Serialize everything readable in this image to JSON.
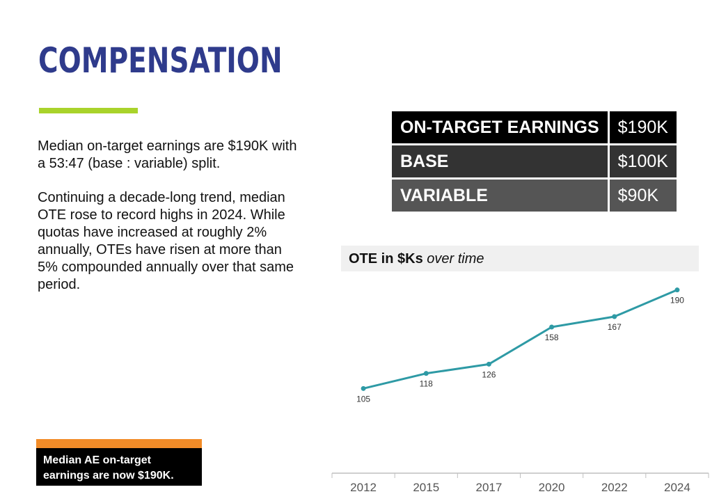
{
  "slide": {
    "title": "COMPENSATION",
    "paragraph1": "Median on-target earnings are $190K with a 53:47 (base : variable) split.",
    "paragraph2": "Continuing a decade-long trend, median OTE rose to record highs in 2024. While quotas have increased at roughly 2% annually, OTEs have risen at more than 5% compounded annually over that same period.",
    "callout": "Median AE on-target earnings are now $190K."
  },
  "table": {
    "rows": [
      {
        "label": "ON-TARGET EARNINGS",
        "value": "$190K"
      },
      {
        "label": "BASE",
        "value": "$100K"
      },
      {
        "label": "VARIABLE",
        "value": "$90K"
      }
    ]
  },
  "chart_header": {
    "bold": "OTE in $Ks",
    "italic": "over time"
  },
  "colors": {
    "title": "#2f3b8c",
    "accent_bar": "#a9d32b",
    "callout_bar": "#f28c28",
    "line": "#2e9aa5"
  },
  "chart_data": {
    "type": "line",
    "title": "OTE in $Ks over time",
    "categories": [
      "2012",
      "2015",
      "2017",
      "2020",
      "2022",
      "2024"
    ],
    "series": [
      {
        "values": [
          105,
          118,
          126,
          158,
          167,
          190
        ]
      }
    ],
    "xlabel": "",
    "ylabel": "",
    "ylim": [
      80,
      200
    ],
    "grid": false,
    "legend": "none",
    "data_labels": true
  }
}
